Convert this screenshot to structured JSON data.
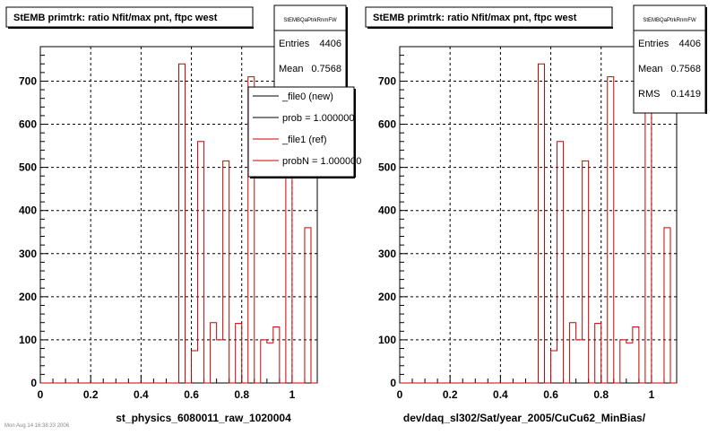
{
  "pads": [
    {
      "title": "StEMB primtrk: ratio Nfit/max pnt, ftpc west",
      "xlabel": "st_physics_6080011_raw_1020004",
      "stats": {
        "name": "StEMBQaPtrkRnmFW",
        "rows": [
          {
            "label": "Entries",
            "value": "4406"
          },
          {
            "label": "Mean",
            "value": "0.7568"
          }
        ]
      },
      "legend": [
        {
          "label": "_file0 (new)",
          "color": "#000000"
        },
        {
          "label": "prob = 1.000000",
          "color": "#000000"
        },
        {
          "label": "_file1 (ref)",
          "color": "#cc0000"
        },
        {
          "label": "probN = 1.000000",
          "color": "#cc0000"
        }
      ]
    },
    {
      "title": "StEMB primtrk: ratio Nfit/max pnt, ftpc west",
      "xlabel": "dev/daq_sl302/Sat/year_2005/CuCu62_MinBias/",
      "stats": {
        "name": "StEMBQaPtrkRnmFW",
        "rows": [
          {
            "label": "Entries",
            "value": "4406"
          },
          {
            "label": "Mean",
            "value": "0.7568"
          },
          {
            "label": "RMS",
            "value": "0.1419"
          }
        ]
      },
      "legend": []
    }
  ],
  "footer_text": "Mon Aug 14 16:38:33 2006",
  "chart_data": [
    {
      "type": "bar",
      "title": "StEMB primtrk: ratio Nfit/max pnt, ftpc west",
      "xlabel": "st_physics_6080011_raw_1020004",
      "ylabel": "",
      "xlim": [
        0,
        1.1
      ],
      "ylim": [
        0,
        780
      ],
      "xticks": [
        0,
        0.2,
        0.4,
        0.6,
        0.8,
        1
      ],
      "yticks": [
        0,
        100,
        200,
        300,
        400,
        500,
        600,
        700
      ],
      "grid": true,
      "legend_position": "top-right",
      "bins": {
        "xmin": 0,
        "xmax": 1.1,
        "count": 44
      },
      "series": [
        {
          "name": "_file1 (ref)",
          "color": "#cc0000",
          "values": [
            0,
            0,
            0,
            0,
            0,
            0,
            0,
            0,
            0,
            0,
            0,
            0,
            0,
            0,
            0,
            0,
            0,
            0,
            0,
            0,
            0,
            0,
            740,
            0,
            75,
            560,
            0,
            140,
            100,
            515,
            0,
            138,
            0,
            710,
            0,
            100,
            93,
            130,
            0,
            640,
            0,
            0,
            360,
            0
          ]
        }
      ]
    },
    {
      "type": "bar",
      "title": "StEMB primtrk: ratio Nfit/max pnt, ftpc west",
      "xlabel": "dev/daq_sl302/Sat/year_2005/CuCu62_MinBias/",
      "ylabel": "",
      "xlim": [
        0,
        1.1
      ],
      "ylim": [
        0,
        780
      ],
      "xticks": [
        0,
        0.2,
        0.4,
        0.6,
        0.8,
        1
      ],
      "yticks": [
        0,
        100,
        200,
        300,
        400,
        500,
        600,
        700
      ],
      "grid": true,
      "bins": {
        "xmin": 0,
        "xmax": 1.1,
        "count": 44
      },
      "series": [
        {
          "color": "#cc0000",
          "values": [
            0,
            0,
            0,
            0,
            0,
            0,
            0,
            0,
            0,
            0,
            0,
            0,
            0,
            0,
            0,
            0,
            0,
            0,
            0,
            0,
            0,
            0,
            740,
            0,
            75,
            560,
            0,
            140,
            100,
            515,
            0,
            138,
            0,
            710,
            0,
            100,
            93,
            130,
            0,
            640,
            0,
            0,
            360,
            0
          ]
        }
      ]
    }
  ]
}
